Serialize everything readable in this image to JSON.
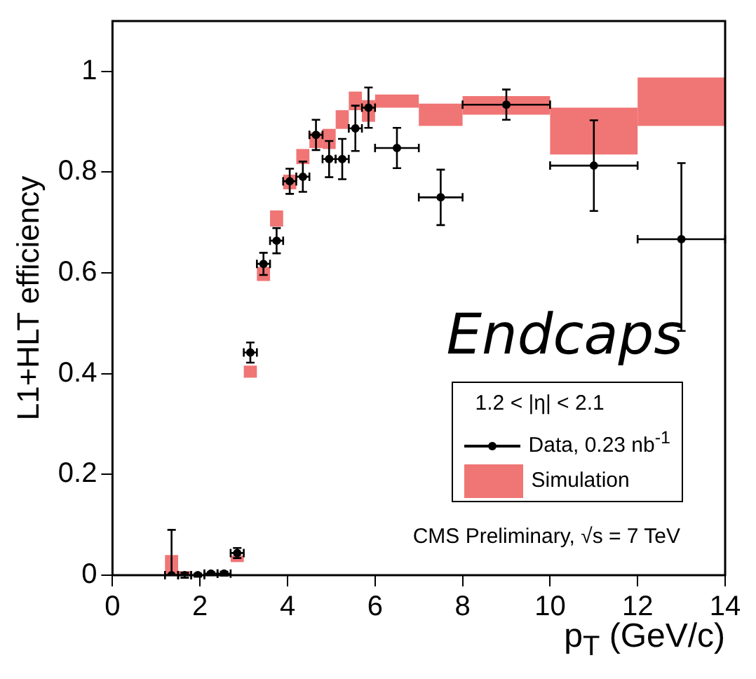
{
  "chart_data": {
    "type": "scatter",
    "xlabel": "p$_{T}$ (GeV/c)",
    "ylabel": "L1+HLT efficiency",
    "legend_title": "1.2 < |η| < 2.1",
    "legend": "bottom right",
    "grid": false,
    "marker": "circle",
    "annotations": [
      "Endcaps",
      "CMS Preliminary, √s = 7 TeV"
    ],
    "xlim": [
      0,
      14
    ],
    "xticks": [
      0,
      2,
      4,
      6,
      8,
      10,
      12,
      14
    ],
    "ylim": [
      0,
      1.1
    ],
    "yticks": [
      0,
      0.2,
      0.4,
      0.6,
      0.8,
      1
    ],
    "series": [
      {
        "name": "Data, 0.23 nb$^{-1}$",
        "color": "#000000",
        "x": [
          1.35,
          1.65,
          1.95,
          2.25,
          2.55,
          2.85,
          3.15,
          3.45,
          3.75,
          4.05,
          4.35,
          4.65,
          4.95,
          5.25,
          5.55,
          5.85,
          6.5,
          7.5,
          9,
          11,
          13
        ],
        "values": [
          0,
          0,
          0,
          0.003,
          0.003,
          0.044,
          0.442,
          0.618,
          0.664,
          0.782,
          0.791,
          0.874,
          0.826,
          0.826,
          0.887,
          0.928,
          0.848,
          0.75,
          0.934,
          0.813,
          0.667
        ],
        "errors": [
          [
            0,
            0.09
          ],
          0.005,
          0.003,
          0.003,
          0.004,
          0.01,
          0.02,
          0.022,
          0.025,
          0.025,
          0.03,
          0.03,
          0.036,
          0.04,
          0.045,
          0.04,
          0.04,
          0.055,
          0.03,
          0.09,
          [
            0.485,
            0.818
          ]
        ],
        "xerrors": [
          0.15,
          0.15,
          0.15,
          0.15,
          0.15,
          0.15,
          0.15,
          0.15,
          0.15,
          0.15,
          0.15,
          0.15,
          0.15,
          0.15,
          0.15,
          0.15,
          0.5,
          0.5,
          1,
          1,
          1
        ]
      },
      {
        "name": "Simulation",
        "type": "step",
        "color": "#f07575",
        "x": [
          1.2,
          1.5,
          1.8,
          2.7,
          3.0,
          3.3,
          3.6,
          3.9,
          4.2,
          4.5,
          4.8,
          5.1,
          5.4,
          5.7,
          6,
          7,
          8,
          10,
          12,
          14
        ],
        "values": [
          null,
          null,
          null,
          null,
          null,
          null,
          null,
          null,
          null,
          null,
          null,
          null,
          null,
          null,
          null,
          null,
          null,
          null,
          null,
          null
        ],
        "lower": [
          0,
          0,
          null,
          0.026,
          0.392,
          0.584,
          0.692,
          0.766,
          0.816,
          0.848,
          0.846,
          0.886,
          0.923,
          0.9,
          0.928,
          0.892,
          0.914,
          0.835,
          0.892,
          0.892
        ],
        "upper": [
          0.04,
          0.008,
          null,
          0.039,
          0.416,
          0.612,
          0.724,
          0.795,
          0.846,
          0.879,
          0.886,
          0.923,
          0.96,
          0.943,
          0.954,
          0.936,
          0.951,
          0.928,
          0.988,
          0.988
        ]
      }
    ]
  }
}
